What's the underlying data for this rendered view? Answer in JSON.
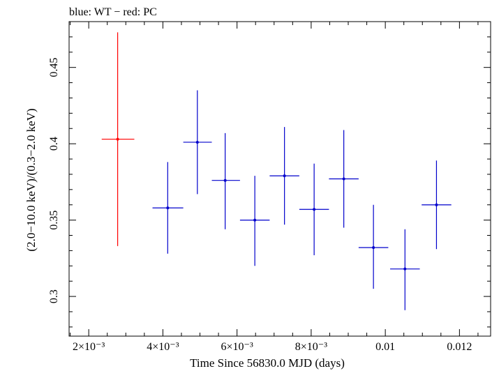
{
  "chart_data": {
    "type": "scatter",
    "title": "blue: WT − red: PC",
    "xlabel": "Time Since 56830.0 MJD (days)",
    "ylabel": "(2.0−10.0 keV)/(0.3−2.0 keV)",
    "xlim": [
      0.00147,
      0.01284
    ],
    "ylim": [
      0.274,
      0.48
    ],
    "x_ticks": [
      {
        "value": 0.002,
        "label": "2×10⁻³"
      },
      {
        "value": 0.004,
        "label": "4×10⁻³"
      },
      {
        "value": 0.006,
        "label": "6×10⁻³"
      },
      {
        "value": 0.008,
        "label": "8×10⁻³"
      },
      {
        "value": 0.01,
        "label": "0.01"
      },
      {
        "value": 0.012,
        "label": "0.012"
      }
    ],
    "y_ticks": [
      {
        "value": 0.3,
        "label": "0.3"
      },
      {
        "value": 0.35,
        "label": "0.35"
      },
      {
        "value": 0.4,
        "label": "0.4"
      },
      {
        "value": 0.45,
        "label": "0.45"
      }
    ],
    "series": [
      {
        "name": "PC",
        "color": "#ff0000",
        "points": [
          {
            "x": 0.00278,
            "xlo": 0.00235,
            "xhi": 0.00323,
            "y": 0.403,
            "ylo": 0.333,
            "yhi": 0.473
          }
        ]
      },
      {
        "name": "WT",
        "color": "#0000cc",
        "points": [
          {
            "x": 0.00413,
            "xlo": 0.00372,
            "xhi": 0.00455,
            "y": 0.358,
            "ylo": 0.328,
            "yhi": 0.388
          },
          {
            "x": 0.00493,
            "xlo": 0.00455,
            "xhi": 0.00532,
            "y": 0.401,
            "ylo": 0.367,
            "yhi": 0.435
          },
          {
            "x": 0.00568,
            "xlo": 0.00532,
            "xhi": 0.00608,
            "y": 0.376,
            "ylo": 0.344,
            "yhi": 0.407
          },
          {
            "x": 0.00648,
            "xlo": 0.00608,
            "xhi": 0.00688,
            "y": 0.35,
            "ylo": 0.32,
            "yhi": 0.379
          },
          {
            "x": 0.00728,
            "xlo": 0.00688,
            "xhi": 0.00768,
            "y": 0.379,
            "ylo": 0.347,
            "yhi": 0.411
          },
          {
            "x": 0.00808,
            "xlo": 0.00768,
            "xhi": 0.00848,
            "y": 0.357,
            "ylo": 0.327,
            "yhi": 0.387
          },
          {
            "x": 0.00888,
            "xlo": 0.00848,
            "xhi": 0.00928,
            "y": 0.377,
            "ylo": 0.345,
            "yhi": 0.409
          },
          {
            "x": 0.00968,
            "xlo": 0.00928,
            "xhi": 0.01008,
            "y": 0.332,
            "ylo": 0.305,
            "yhi": 0.36
          },
          {
            "x": 0.01053,
            "xlo": 0.01013,
            "xhi": 0.01093,
            "y": 0.318,
            "ylo": 0.291,
            "yhi": 0.344
          },
          {
            "x": 0.01138,
            "xlo": 0.01098,
            "xhi": 0.01178,
            "y": 0.36,
            "ylo": 0.331,
            "yhi": 0.389
          }
        ]
      }
    ]
  }
}
